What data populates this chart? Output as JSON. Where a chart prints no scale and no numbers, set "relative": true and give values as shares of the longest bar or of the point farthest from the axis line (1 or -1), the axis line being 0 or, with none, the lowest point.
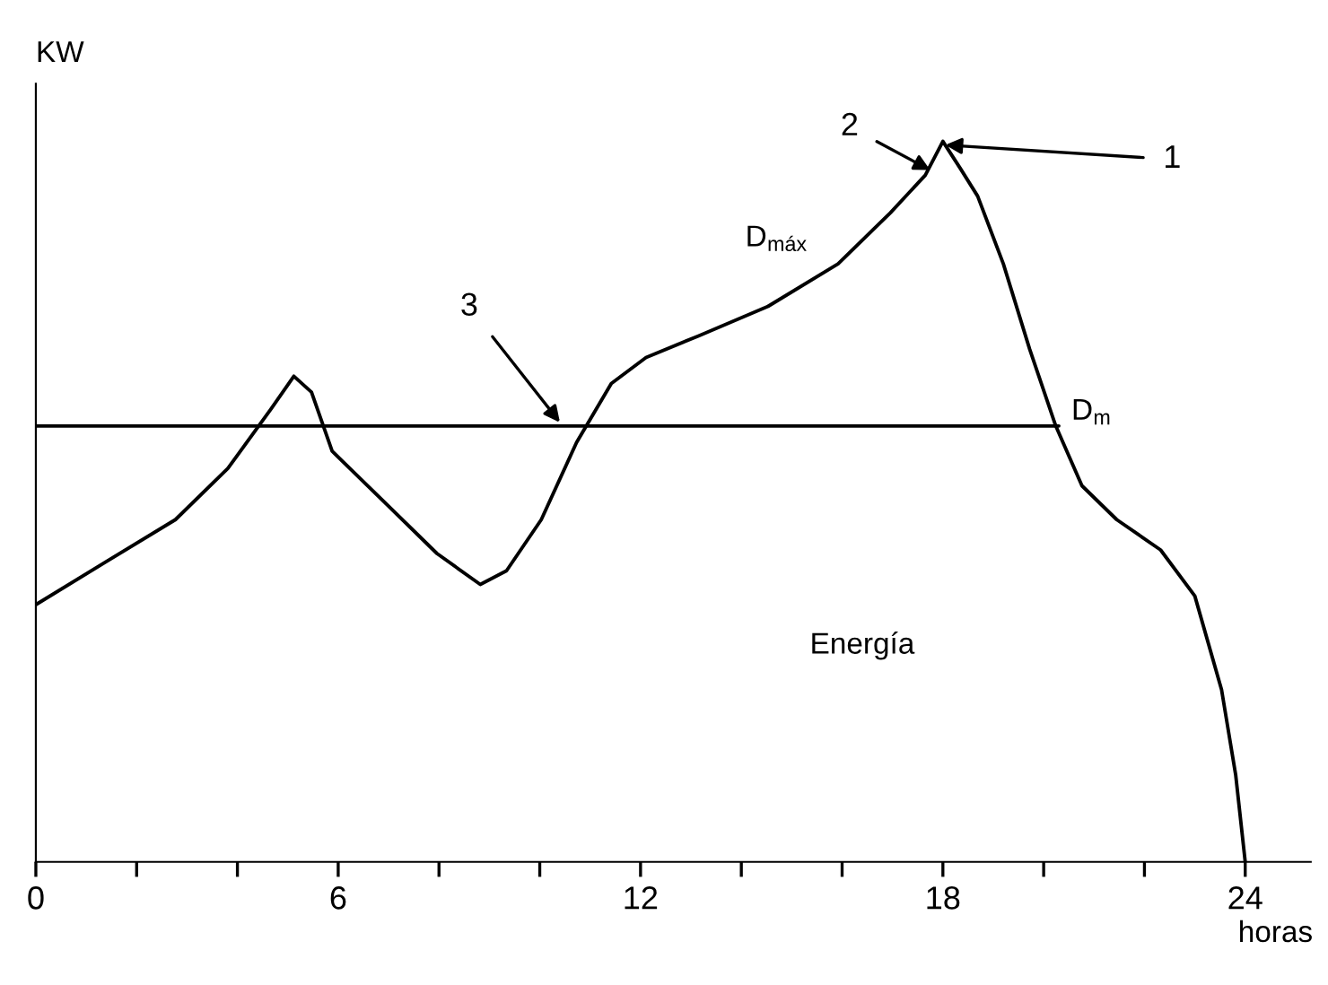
{
  "chart_data": {
    "type": "line",
    "relative": true,
    "ylabel": "KW",
    "xlabel": "horas",
    "xlim": [
      0,
      25.3
    ],
    "xticks": [
      0,
      {
        "value": 2,
        "label": null
      },
      {
        "value": 4,
        "label": null
      },
      6,
      {
        "value": 8,
        "label": null
      },
      {
        "value": 10,
        "label": null
      },
      12,
      {
        "value": 14,
        "label": null
      },
      {
        "value": 16,
        "label": null
      },
      18,
      {
        "value": 20,
        "label": null
      },
      {
        "value": 22,
        "label": null
      },
      24
    ],
    "grid": false,
    "legend": false,
    "marker": "none",
    "line_style": "solid",
    "series": [
      {
        "color": "#000000",
        "x": [
          0,
          1.38,
          2.77,
          3.81,
          4.67,
          5.12,
          5.47,
          5.88,
          6.92,
          7.96,
          8.82,
          9.34,
          10.03,
          10.73,
          11.42,
          12.11,
          13.15,
          14.53,
          15.92,
          16.96,
          17.65,
          18.0,
          18.35,
          18.69,
          19.2,
          19.72,
          20.24,
          20.76,
          21.45,
          22.32,
          23.0,
          23.53,
          23.81,
          24.0
        ],
        "values": [
          0.357,
          0.416,
          0.475,
          0.546,
          0.629,
          0.674,
          0.652,
          0.57,
          0.499,
          0.428,
          0.385,
          0.404,
          0.475,
          0.582,
          0.664,
          0.7,
          0.73,
          0.771,
          0.83,
          0.901,
          0.953,
          1.0,
          0.962,
          0.924,
          0.83,
          0.712,
          0.605,
          0.522,
          0.475,
          0.433,
          0.369,
          0.239,
          0.121,
          0
        ]
      },
      {
        "name": "D$_{m}$",
        "color": "#000000",
        "x": [
          0,
          20.3
        ],
        "values": [
          0.605,
          0.605
        ]
      }
    ],
    "annotations": [
      {
        "text": "1",
        "x": 18.05,
        "y": 0.995
      },
      {
        "text": "2",
        "x": 17.75,
        "y": 0.96
      },
      {
        "text": "3",
        "x": 10.4,
        "y": 0.61
      },
      "D$_{máx}$",
      "Energía"
    ]
  }
}
